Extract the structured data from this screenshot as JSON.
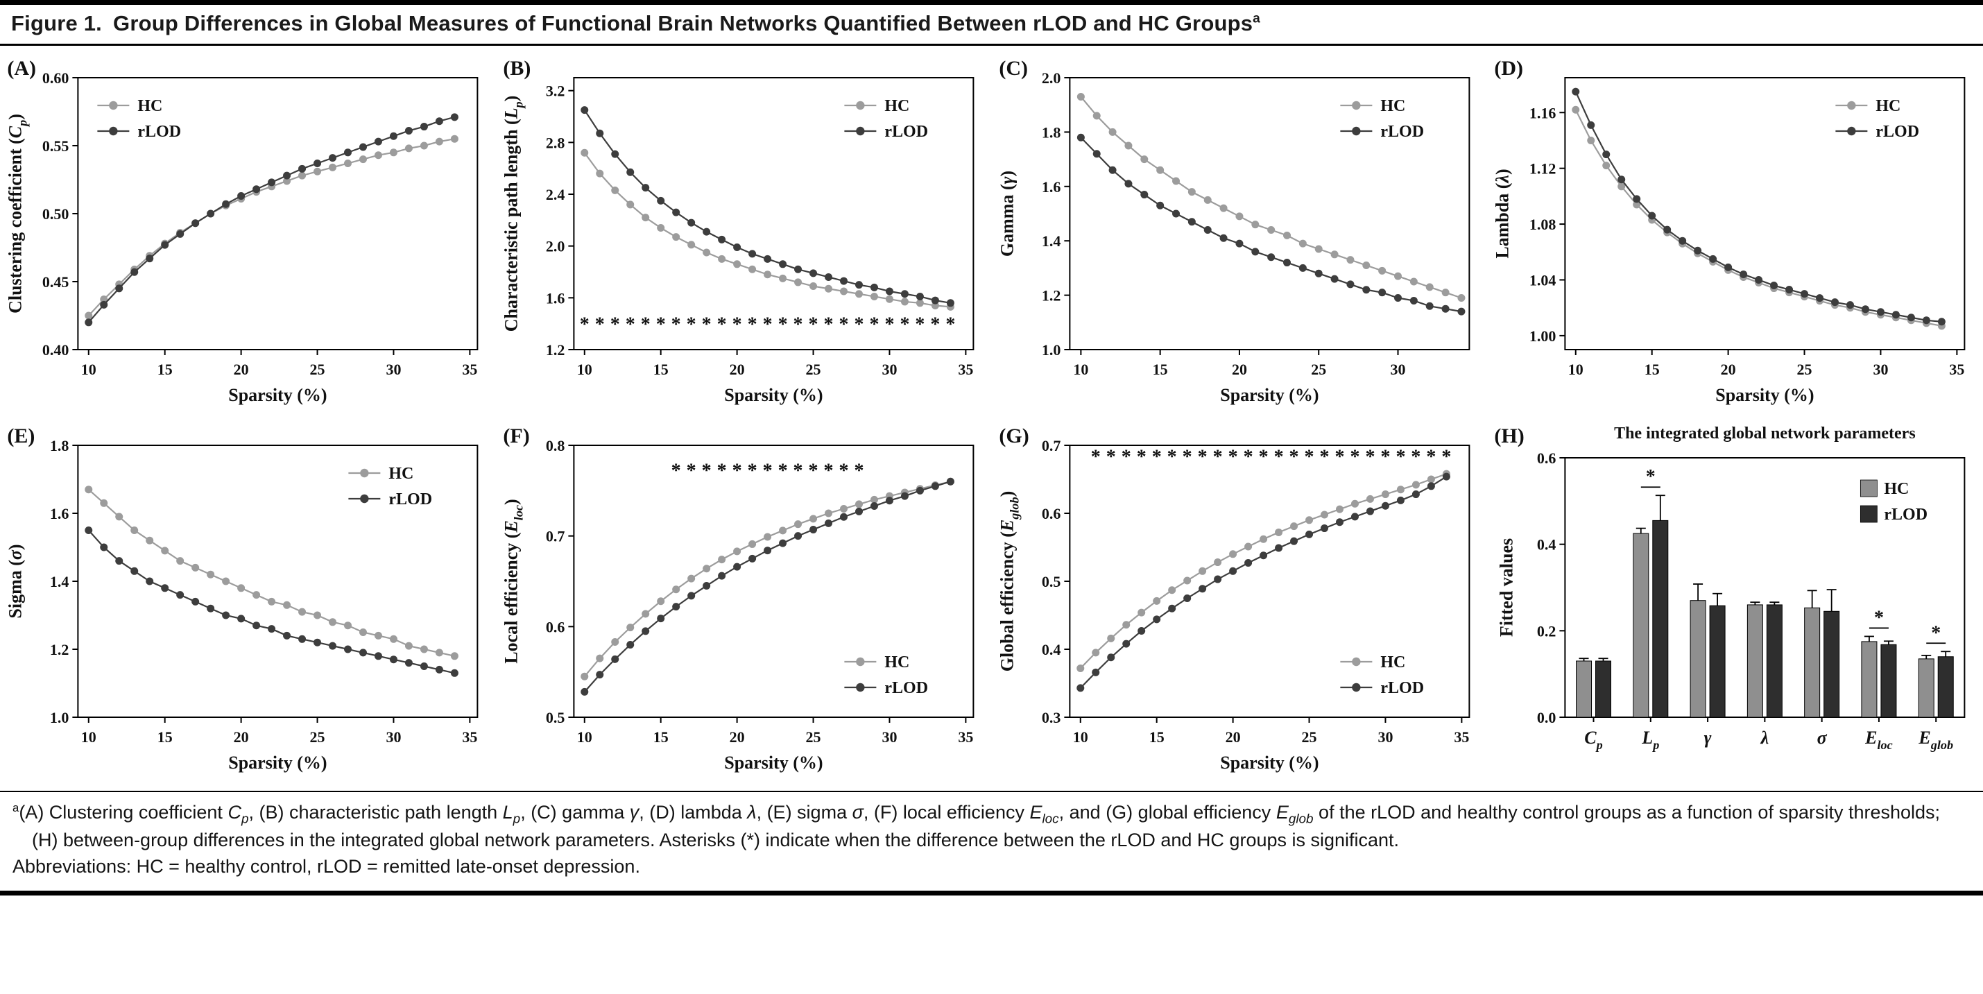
{
  "header": {
    "figure_label": "Figure 1.",
    "title": "Group Differences in Global Measures of Functional Brain Networks Quantified Between rLOD and HC Groups",
    "superscript": "a"
  },
  "colors": {
    "hc": "#9c9c9c",
    "rlod": "#3d3d3d",
    "axis": "#000000",
    "background": "#ffffff"
  },
  "chart_data": [
    {
      "type": "line",
      "panel_id": "A",
      "panel_label": "(A)",
      "xlabel": "Sparsity (%)",
      "ylabel": "Clustering coefficient (C_{p})",
      "xlim": [
        9.3,
        35.5
      ],
      "xticks": [
        10,
        15,
        20,
        25,
        30,
        35
      ],
      "ylim": [
        0.4,
        0.6
      ],
      "yticks": [
        0.4,
        0.45,
        0.5,
        0.55,
        0.6
      ],
      "ydecimals": 2,
      "legend_pos": "top-left",
      "x": [
        10,
        11,
        12,
        13,
        14,
        15,
        16,
        17,
        18,
        19,
        20,
        21,
        22,
        23,
        24,
        25,
        26,
        27,
        28,
        29,
        30,
        31,
        32,
        33,
        34
      ],
      "series": [
        {
          "name": "HC",
          "color": "#9c9c9c",
          "values": [
            0.425,
            0.437,
            0.448,
            0.459,
            0.469,
            0.478,
            0.486,
            0.493,
            0.5,
            0.506,
            0.511,
            0.516,
            0.52,
            0.524,
            0.528,
            0.531,
            0.534,
            0.537,
            0.54,
            0.543,
            0.545,
            0.548,
            0.55,
            0.553,
            0.555
          ]
        },
        {
          "name": "rLOD",
          "color": "#3d3d3d",
          "values": [
            0.42,
            0.433,
            0.445,
            0.457,
            0.467,
            0.477,
            0.485,
            0.493,
            0.5,
            0.507,
            0.513,
            0.518,
            0.523,
            0.528,
            0.533,
            0.537,
            0.541,
            0.545,
            0.549,
            0.553,
            0.557,
            0.561,
            0.564,
            0.568,
            0.571
          ]
        }
      ]
    },
    {
      "type": "line",
      "panel_id": "B",
      "panel_label": "(B)",
      "xlabel": "Sparsity (%)",
      "ylabel": "Characteristic path length (L_{p})",
      "xlim": [
        9.3,
        35.5
      ],
      "xticks": [
        10,
        15,
        20,
        25,
        30,
        35
      ],
      "ylim": [
        1.2,
        3.3
      ],
      "yticks": [
        1.2,
        1.6,
        2.0,
        2.4,
        2.8,
        3.2
      ],
      "ydecimals": 1,
      "legend_pos": "top-right",
      "asterisks": {
        "y": 1.4,
        "x_from": 10,
        "x_to": 34
      },
      "x": [
        10,
        11,
        12,
        13,
        14,
        15,
        16,
        17,
        18,
        19,
        20,
        21,
        22,
        23,
        24,
        25,
        26,
        27,
        28,
        29,
        30,
        31,
        32,
        33,
        34
      ],
      "series": [
        {
          "name": "HC",
          "color": "#9c9c9c",
          "values": [
            2.72,
            2.56,
            2.43,
            2.32,
            2.22,
            2.14,
            2.07,
            2.01,
            1.95,
            1.9,
            1.86,
            1.82,
            1.78,
            1.75,
            1.72,
            1.69,
            1.67,
            1.65,
            1.63,
            1.61,
            1.59,
            1.57,
            1.56,
            1.54,
            1.53
          ]
        },
        {
          "name": "rLOD",
          "color": "#3d3d3d",
          "values": [
            3.05,
            2.87,
            2.71,
            2.57,
            2.45,
            2.35,
            2.26,
            2.18,
            2.11,
            2.05,
            1.99,
            1.94,
            1.9,
            1.86,
            1.82,
            1.79,
            1.76,
            1.73,
            1.7,
            1.68,
            1.65,
            1.63,
            1.61,
            1.58,
            1.56
          ]
        }
      ]
    },
    {
      "type": "line",
      "panel_id": "C",
      "panel_label": "(C)",
      "xlabel": "Sparsity (%)",
      "ylabel": "Gamma (γ)",
      "xlim": [
        9.3,
        34.5
      ],
      "xticks": [
        10,
        15,
        20,
        25,
        30
      ],
      "ylim": [
        1.0,
        2.0
      ],
      "yticks": [
        1.0,
        1.2,
        1.4,
        1.6,
        1.8,
        2.0
      ],
      "ydecimals": 1,
      "legend_pos": "top-right",
      "x": [
        10,
        11,
        12,
        13,
        14,
        15,
        16,
        17,
        18,
        19,
        20,
        21,
        22,
        23,
        24,
        25,
        26,
        27,
        28,
        29,
        30,
        31,
        32,
        33,
        34
      ],
      "series": [
        {
          "name": "HC",
          "color": "#9c9c9c",
          "values": [
            1.93,
            1.86,
            1.8,
            1.75,
            1.7,
            1.66,
            1.62,
            1.58,
            1.55,
            1.52,
            1.49,
            1.46,
            1.44,
            1.42,
            1.39,
            1.37,
            1.35,
            1.33,
            1.31,
            1.29,
            1.27,
            1.25,
            1.23,
            1.21,
            1.19
          ]
        },
        {
          "name": "rLOD",
          "color": "#3d3d3d",
          "values": [
            1.78,
            1.72,
            1.66,
            1.61,
            1.57,
            1.53,
            1.5,
            1.47,
            1.44,
            1.41,
            1.39,
            1.36,
            1.34,
            1.32,
            1.3,
            1.28,
            1.26,
            1.24,
            1.22,
            1.21,
            1.19,
            1.18,
            1.16,
            1.15,
            1.14
          ]
        }
      ]
    },
    {
      "type": "line",
      "panel_id": "D",
      "panel_label": "(D)",
      "xlabel": "Sparsity (%)",
      "ylabel": "Lambda (λ)",
      "xlim": [
        9.3,
        35.5
      ],
      "xticks": [
        10,
        15,
        20,
        25,
        30,
        35
      ],
      "ylim": [
        0.99,
        1.185
      ],
      "yticks": [
        1.0,
        1.04,
        1.08,
        1.12,
        1.16
      ],
      "ydecimals": 2,
      "legend_pos": "top-right",
      "x": [
        10,
        11,
        12,
        13,
        14,
        15,
        16,
        17,
        18,
        19,
        20,
        21,
        22,
        23,
        24,
        25,
        26,
        27,
        28,
        29,
        30,
        31,
        32,
        33,
        34
      ],
      "series": [
        {
          "name": "HC",
          "color": "#9c9c9c",
          "values": [
            1.162,
            1.14,
            1.122,
            1.107,
            1.094,
            1.083,
            1.074,
            1.066,
            1.059,
            1.053,
            1.047,
            1.042,
            1.038,
            1.034,
            1.031,
            1.028,
            1.025,
            1.022,
            1.02,
            1.017,
            1.015,
            1.013,
            1.011,
            1.009,
            1.007
          ]
        },
        {
          "name": "rLOD",
          "color": "#3d3d3d",
          "values": [
            1.175,
            1.151,
            1.13,
            1.112,
            1.098,
            1.086,
            1.076,
            1.068,
            1.061,
            1.055,
            1.049,
            1.044,
            1.04,
            1.036,
            1.033,
            1.03,
            1.027,
            1.024,
            1.022,
            1.019,
            1.017,
            1.015,
            1.013,
            1.011,
            1.01
          ]
        }
      ]
    },
    {
      "type": "line",
      "panel_id": "E",
      "panel_label": "(E)",
      "xlabel": "Sparsity (%)",
      "ylabel": "Sigma (σ)",
      "xlim": [
        9.3,
        35.5
      ],
      "xticks": [
        10,
        15,
        20,
        25,
        30,
        35
      ],
      "ylim": [
        1.0,
        1.8
      ],
      "yticks": [
        1.0,
        1.2,
        1.4,
        1.6,
        1.8
      ],
      "ydecimals": 1,
      "legend_pos": "top-right",
      "x": [
        10,
        11,
        12,
        13,
        14,
        15,
        16,
        17,
        18,
        19,
        20,
        21,
        22,
        23,
        24,
        25,
        26,
        27,
        28,
        29,
        30,
        31,
        32,
        33,
        34
      ],
      "series": [
        {
          "name": "HC",
          "color": "#9c9c9c",
          "values": [
            1.67,
            1.63,
            1.59,
            1.55,
            1.52,
            1.49,
            1.46,
            1.44,
            1.42,
            1.4,
            1.38,
            1.36,
            1.34,
            1.33,
            1.31,
            1.3,
            1.28,
            1.27,
            1.25,
            1.24,
            1.23,
            1.21,
            1.2,
            1.19,
            1.18
          ]
        },
        {
          "name": "rLOD",
          "color": "#3d3d3d",
          "values": [
            1.55,
            1.5,
            1.46,
            1.43,
            1.4,
            1.38,
            1.36,
            1.34,
            1.32,
            1.3,
            1.29,
            1.27,
            1.26,
            1.24,
            1.23,
            1.22,
            1.21,
            1.2,
            1.19,
            1.18,
            1.17,
            1.16,
            1.15,
            1.14,
            1.13
          ]
        }
      ]
    },
    {
      "type": "line",
      "panel_id": "F",
      "panel_label": "(F)",
      "xlabel": "Sparsity (%)",
      "ylabel": "Local efficiency (E_{loc})",
      "xlim": [
        9.3,
        35.5
      ],
      "xticks": [
        10,
        15,
        20,
        25,
        30,
        35
      ],
      "ylim": [
        0.5,
        0.8
      ],
      "yticks": [
        0.5,
        0.6,
        0.7,
        0.8
      ],
      "ydecimals": 1,
      "legend_pos": "bottom-right",
      "asterisks": {
        "y": 0.773,
        "x_from": 16,
        "x_to": 28
      },
      "x": [
        10,
        11,
        12,
        13,
        14,
        15,
        16,
        17,
        18,
        19,
        20,
        21,
        22,
        23,
        24,
        25,
        26,
        27,
        28,
        29,
        30,
        31,
        32,
        33,
        34
      ],
      "series": [
        {
          "name": "HC",
          "color": "#9c9c9c",
          "values": [
            0.545,
            0.565,
            0.583,
            0.599,
            0.614,
            0.628,
            0.641,
            0.653,
            0.664,
            0.674,
            0.683,
            0.691,
            0.699,
            0.706,
            0.713,
            0.719,
            0.725,
            0.73,
            0.735,
            0.74,
            0.744,
            0.748,
            0.752,
            0.756,
            0.76
          ]
        },
        {
          "name": "rLOD",
          "color": "#3d3d3d",
          "values": [
            0.528,
            0.547,
            0.564,
            0.58,
            0.595,
            0.609,
            0.622,
            0.634,
            0.645,
            0.656,
            0.666,
            0.675,
            0.684,
            0.692,
            0.7,
            0.707,
            0.714,
            0.721,
            0.727,
            0.733,
            0.739,
            0.744,
            0.75,
            0.755,
            0.76
          ]
        }
      ]
    },
    {
      "type": "line",
      "panel_id": "G",
      "panel_label": "(G)",
      "xlabel": "Sparsity (%)",
      "ylabel": "Global efficiency (E_{glob})",
      "xlim": [
        9.3,
        35.5
      ],
      "xticks": [
        10,
        15,
        20,
        25,
        30,
        35
      ],
      "ylim": [
        0.3,
        0.7
      ],
      "yticks": [
        0.3,
        0.4,
        0.5,
        0.6,
        0.7
      ],
      "ydecimals": 1,
      "legend_pos": "bottom-right",
      "asterisks": {
        "y": 0.684,
        "x_from": 11,
        "x_to": 34
      },
      "x": [
        10,
        11,
        12,
        13,
        14,
        15,
        16,
        17,
        18,
        19,
        20,
        21,
        22,
        23,
        24,
        25,
        26,
        27,
        28,
        29,
        30,
        31,
        32,
        33,
        34
      ],
      "series": [
        {
          "name": "HC",
          "color": "#9c9c9c",
          "values": [
            0.372,
            0.395,
            0.416,
            0.436,
            0.454,
            0.471,
            0.487,
            0.501,
            0.515,
            0.528,
            0.54,
            0.551,
            0.562,
            0.572,
            0.581,
            0.59,
            0.598,
            0.606,
            0.614,
            0.621,
            0.628,
            0.635,
            0.642,
            0.65,
            0.658
          ]
        },
        {
          "name": "rLOD",
          "color": "#3d3d3d",
          "values": [
            0.343,
            0.366,
            0.388,
            0.408,
            0.427,
            0.444,
            0.46,
            0.475,
            0.489,
            0.503,
            0.515,
            0.527,
            0.538,
            0.549,
            0.559,
            0.569,
            0.578,
            0.587,
            0.595,
            0.603,
            0.611,
            0.619,
            0.628,
            0.64,
            0.654
          ]
        }
      ]
    },
    {
      "type": "bar",
      "panel_id": "H",
      "panel_label": "(H)",
      "title": "The integrated global network parameters",
      "ylabel": "Fitted values",
      "ylim": [
        0,
        0.6
      ],
      "yticks": [
        0,
        0.2,
        0.4,
        0.6
      ],
      "ydecimals": 1,
      "legend_pos": "top-right",
      "categories": [
        "C_{p}",
        "L_{p}",
        "γ",
        "λ",
        "σ",
        "E_{loc}",
        "E_{glob}"
      ],
      "series": [
        {
          "name": "HC",
          "color": "#8f8f8f",
          "values": [
            0.13,
            0.425,
            0.27,
            0.26,
            0.253,
            0.175,
            0.135
          ],
          "errors": [
            0.006,
            0.012,
            0.038,
            0.006,
            0.04,
            0.012,
            0.008
          ]
        },
        {
          "name": "rLOD",
          "color": "#2e2e2e",
          "values": [
            0.13,
            0.455,
            0.258,
            0.26,
            0.245,
            0.168,
            0.14
          ],
          "errors": [
            0.006,
            0.058,
            0.028,
            0.006,
            0.05,
            0.008,
            0.012
          ]
        }
      ],
      "significance": [
        {
          "category_index": 1,
          "label": "*"
        },
        {
          "category_index": 5,
          "label": "*"
        },
        {
          "category_index": 6,
          "label": "*"
        }
      ]
    }
  ],
  "footnote": {
    "marker": "a",
    "line1": "(A) Clustering coefficient C_{p}, (B) characteristic path length L_{p}, (C) gamma γ, (D) lambda λ, (E) sigma σ, (F) local efficiency E_{loc}, and (G) global efficiency E_{glob} of the rLOD and healthy control groups as a function of sparsity thresholds; (H) between-group differences in the integrated global network parameters. Asterisks (*) indicate when the difference between the rLOD and HC groups is significant.",
    "line2": "Abbreviations: HC = healthy control, rLOD = remitted late-onset depression."
  }
}
